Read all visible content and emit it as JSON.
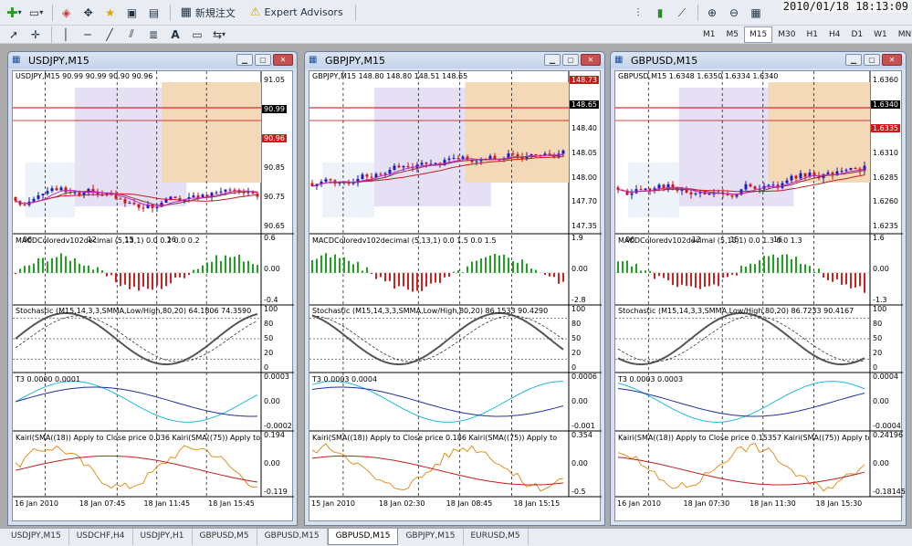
{
  "toolbar": {
    "new_order_label": "新規注文",
    "expert_advisors_label": "Expert Advisors",
    "timeframes": [
      "M1",
      "M5",
      "M15",
      "M30",
      "H1",
      "H4",
      "D1",
      "W1",
      "MN"
    ],
    "active_timeframe": "M15"
  },
  "clock": "2010/01/18 18:13:09",
  "windows": [
    {
      "title": "USDJPY,M15",
      "header": "USDJPY,M15  90.99 90.99 90.90 90.96",
      "price_axis": [
        "91.05",
        "90.99",
        "90.96",
        "90.85",
        "90.75",
        "90.65"
      ],
      "day_labels": [
        "06",
        "12",
        "15",
        "16"
      ],
      "macd_label": "MACDColoredv102decimal (5,13,1) 0.0 0.2 0.0 0.2",
      "macd_axis": [
        "0.6",
        "0.00",
        "-0.4"
      ],
      "stoch_label": "Stochastic (M15,14,3,3,SMMA,Low/High,80,20) 64.1806 74.3590",
      "stoch_axis": [
        "100",
        "80",
        "50",
        "20",
        "0"
      ],
      "t3_label": "T3 0.0000 0.0001",
      "t3_axis": [
        "0.0003",
        "0.00",
        "-0.0002"
      ],
      "kairi_label": "Kairi(SMA((18)) Apply to Close price 0.036  Kairi(SMA((75)) Apply to",
      "kairi_axis": [
        "0.194",
        "0.00",
        "-0.119"
      ],
      "time_labels": [
        "16 Jan 2010",
        "18 Jan 07:45",
        "18 Jan 11:45",
        "18 Jan 15:45"
      ]
    },
    {
      "title": "GBPJPY,M15",
      "header": "GBPJPY,M15  148.80 148.80 148.51 148.65",
      "price_axis": [
        "148.73",
        "148.65",
        "148.40",
        "148.05",
        "148.00",
        "147.70",
        "147.35"
      ],
      "macd_label": "MACDColoredv102decimal (5,13,1) 0.0 1.5 0.0 1.5",
      "macd_axis": [
        "1.9",
        "0.00",
        "-2.8"
      ],
      "stoch_label": "Stochastic (M15,14,3,3,SMMA,Low/High,80,20) 86.1533 90.4290",
      "stoch_axis": [
        "100",
        "80",
        "50",
        "20",
        "0"
      ],
      "t3_label": "T3 0.0003 0.0004",
      "t3_axis": [
        "0.0006",
        "0.00",
        "-0.001"
      ],
      "kairi_label": "Kairi(SMA((18)) Apply to Close price 0.186  Kairi(SMA((75)) Apply to",
      "kairi_axis": [
        "0.354",
        "0.00",
        "-0.5"
      ],
      "time_labels": [
        "15 Jan 2010",
        "18 Jan 02:30",
        "18 Jan 08:45",
        "18 Jan 15:15"
      ]
    },
    {
      "title": "GBPUSD,M15",
      "header": "GBPUSD,M15  1.6348 1.6350 1.6334 1.6340",
      "price_axis": [
        "1.6360",
        "1.6340",
        "1.6335",
        "1.6310",
        "1.6285",
        "1.6260",
        "1.6235"
      ],
      "day_labels": [
        "06",
        "12",
        "15",
        "16"
      ],
      "macd_label": "MACDColoredv102decimal (5,13,1) 0.0 1.3 0.0 1.3",
      "macd_axis": [
        "1.6",
        "0.00",
        "-1.3"
      ],
      "stoch_label": "Stochastic (M15,14,3,3,SMMA,Low/High,80,20) 86.7233 90.4167",
      "stoch_axis": [
        "100",
        "80",
        "50",
        "20",
        "0"
      ],
      "t3_label": "T3 0.0003 0.0003",
      "t3_axis": [
        "0.0004",
        "0.00",
        "-0.0004"
      ],
      "kairi_label": "Kairi(SMA((18)) Apply to Close price 0.15357  Kairi(SMA((75)) Apply to",
      "kairi_axis": [
        "0.24196",
        "0.00",
        "-0.18145"
      ],
      "time_labels": [
        "16 Jan 2010",
        "18 Jan 07:30",
        "18 Jan 11:30",
        "18 Jan 15:30"
      ]
    }
  ],
  "tabs": [
    "USDJPY,M15",
    "USDCHF,H4",
    "USDJPY,H1",
    "GBPUSD,M5",
    "GBPUSD,M15",
    "GBPUSD,M15",
    "GBPJPY,M15",
    "EURUSD,M5"
  ],
  "active_tab": 5
}
